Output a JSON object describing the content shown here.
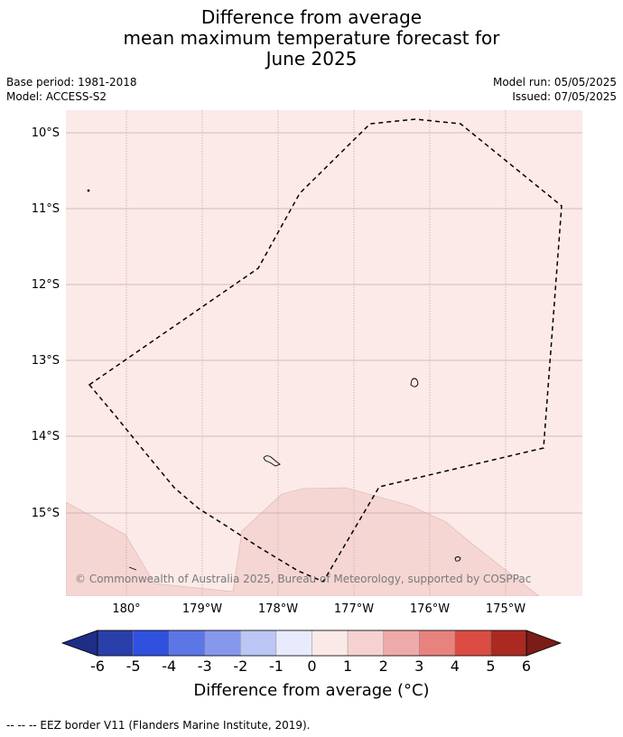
{
  "title": {
    "line1": "Difference from average",
    "line2": "mean maximum temperature forecast for",
    "line3": "June 2025"
  },
  "meta": {
    "base_period": "Base period: 1981-2018",
    "model": "Model: ACCESS-S2",
    "model_run": "Model run: 05/05/2025",
    "issued": "Issued: 07/05/2025"
  },
  "map": {
    "lat_labels": [
      "10°S",
      "11°S",
      "12°S",
      "13°S",
      "14°S",
      "15°S"
    ],
    "lon_labels": [
      "180°",
      "179°W",
      "178°W",
      "177°W",
      "176°W",
      "175°W"
    ],
    "copyright": "© Commonwealth of Australia 2025, Bureau of Meteorology, supported by COSPPac",
    "background_color": "#fbeae8",
    "anomaly_color": "#f5d6d3",
    "grid_color": "#c9a9ae"
  },
  "colorbar": {
    "ticks": [
      "-6",
      "-5",
      "-4",
      "-3",
      "-2",
      "-1",
      "0",
      "1",
      "2",
      "3",
      "4",
      "5",
      "6"
    ],
    "colors": [
      "#2a3faa",
      "#3050e0",
      "#5c76e6",
      "#8598ec",
      "#bcc6f5",
      "#e8ebfb",
      "#fbe9e8",
      "#f5d2d0",
      "#eeaaa8",
      "#e8827f",
      "#dc4c42",
      "#aa2a22"
    ],
    "low_extend_color": "#1e2d86",
    "high_extend_color": "#7a1c18",
    "label": "Difference from average (°C)"
  },
  "legend": {
    "eez": "-- -- -- EEZ border V11 (Flanders Marine Institute, 2019)."
  }
}
